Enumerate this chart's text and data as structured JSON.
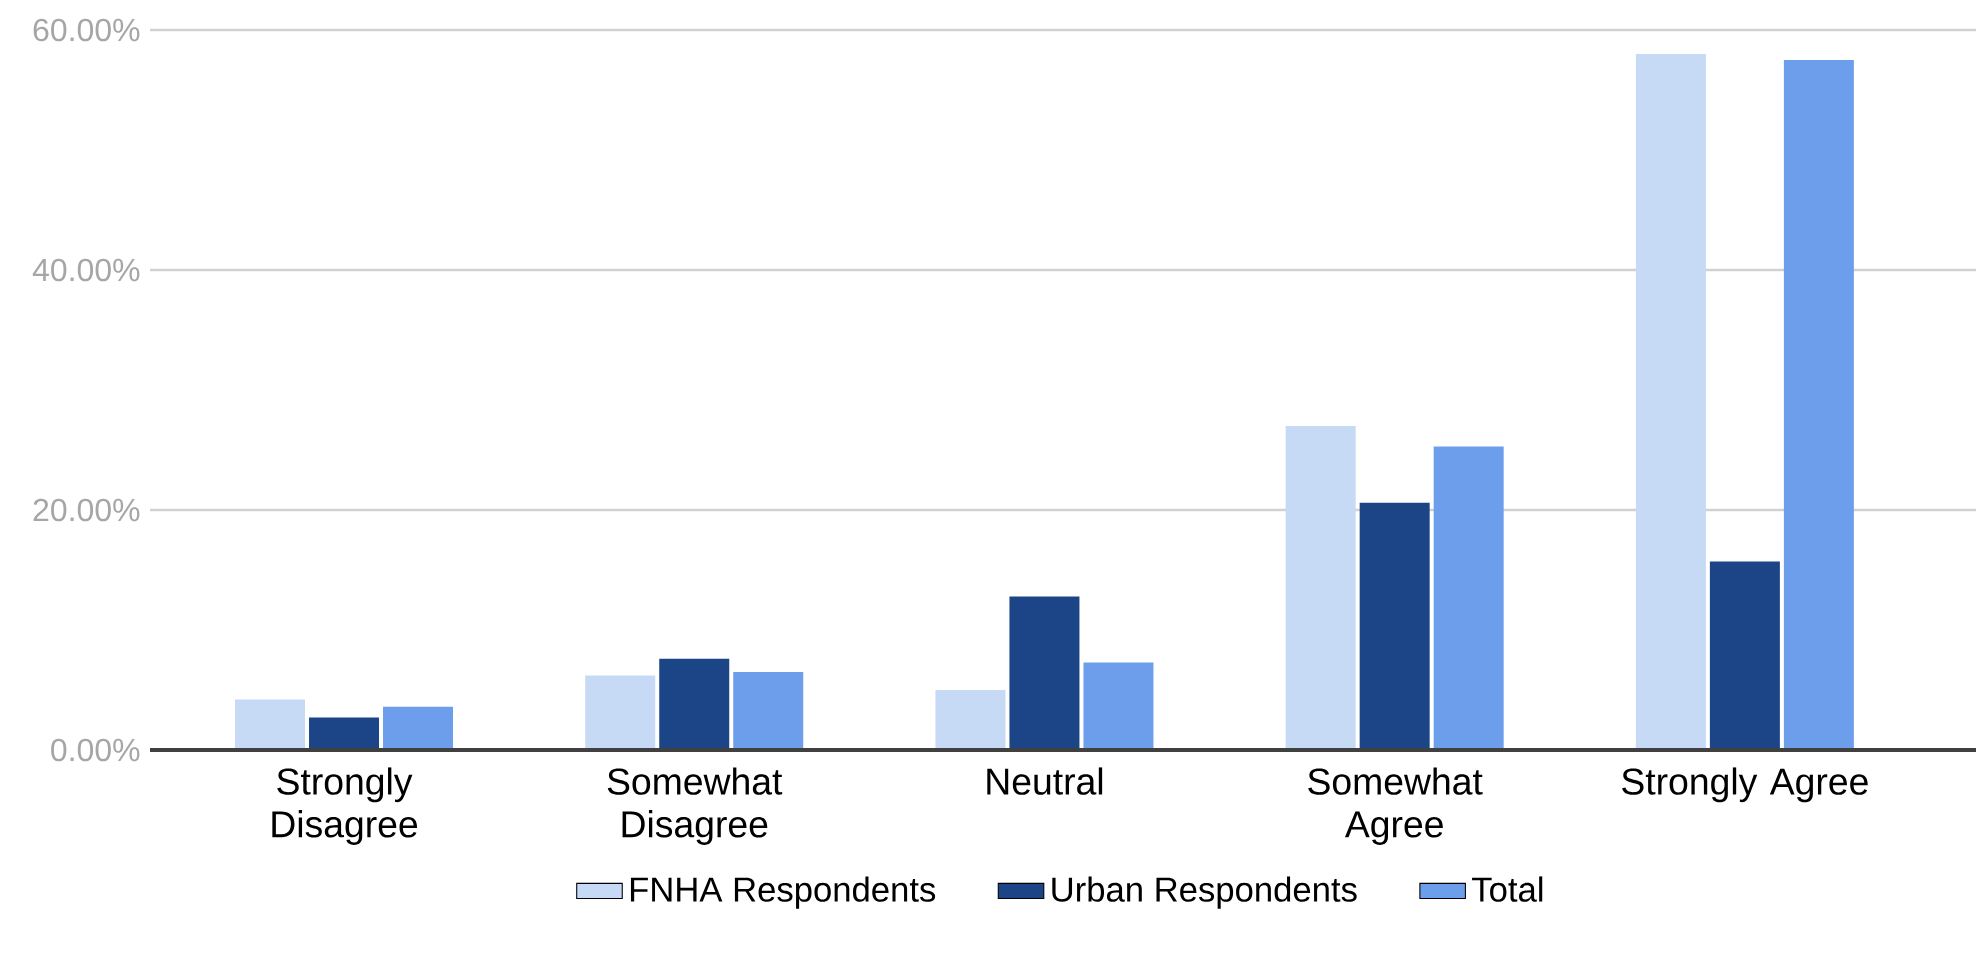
{
  "chart_data": {
    "type": "bar",
    "categories": [
      "Strongly Disagree",
      "Somewhat Disagree",
      "Neutral",
      "Somewhat Agree",
      "Strongly Agree"
    ],
    "series": [
      {
        "name": "FNHA Respondents",
        "color": "#c6d9f5",
        "values": [
          4.2,
          6.2,
          5.0,
          27.0,
          58.0
        ]
      },
      {
        "name": "Urban Respondents",
        "color": "#1c4587",
        "values": [
          2.7,
          7.6,
          12.8,
          20.6,
          15.7
        ]
      },
      {
        "name": "Total",
        "color": "#6d9eeb",
        "values": [
          3.6,
          6.5,
          7.3,
          25.3,
          57.5
        ]
      }
    ],
    "ylim": [
      0,
      60
    ],
    "yticks": [
      {
        "value": 0,
        "label": "0.00%"
      },
      {
        "value": 20,
        "label": "20.00%"
      },
      {
        "value": 40,
        "label": "40.00%"
      },
      {
        "value": 60,
        "label": "60.00%"
      }
    ],
    "grid": "y",
    "legend": "bottom"
  }
}
